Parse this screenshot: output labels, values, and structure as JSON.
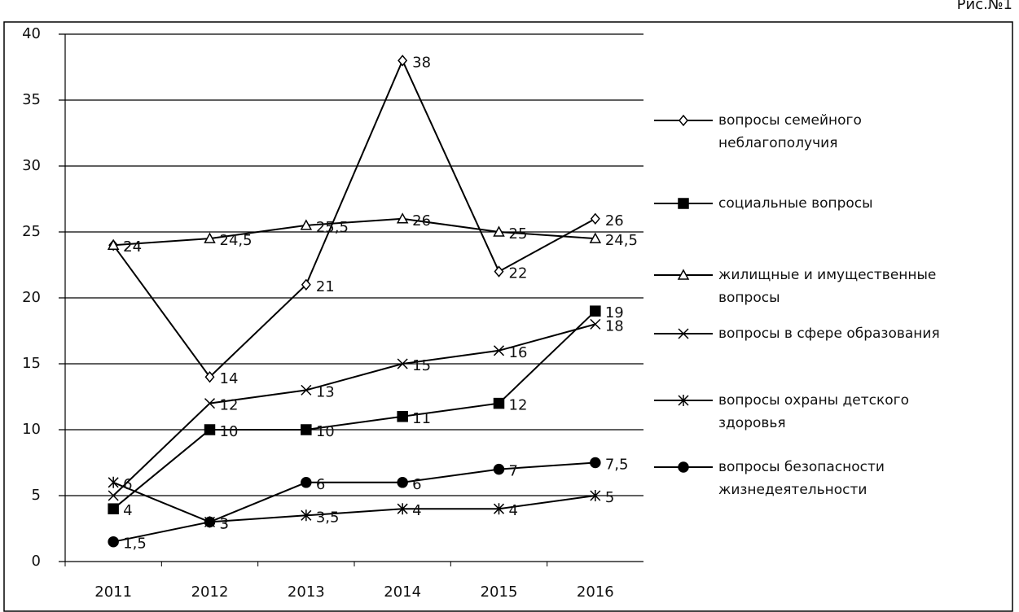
{
  "chart_data": {
    "type": "line",
    "annotation": "Рис.№1",
    "categories": [
      "2011",
      "2012",
      "2013",
      "2014",
      "2015",
      "2016"
    ],
    "ylim": [
      0,
      40
    ],
    "yticks": [
      0,
      5,
      10,
      15,
      20,
      25,
      30,
      35,
      40
    ],
    "grid": true,
    "legend": "right",
    "series": [
      {
        "name": "вопросы семейного неблагополучия",
        "color": "#000000",
        "marker": "diamond",
        "values": [
          24,
          14,
          21,
          38,
          22,
          26
        ]
      },
      {
        "name": "социальные вопросы",
        "color": "#000000",
        "marker": "square",
        "values": [
          4,
          10,
          10,
          11,
          12,
          19
        ]
      },
      {
        "name": "жилищные и имущественные вопросы",
        "color": "#000000",
        "marker": "triangle",
        "values": [
          24,
          24.5,
          25.5,
          26,
          25,
          24.5
        ],
        "value_labels": [
          "24",
          "24,5",
          "25,5",
          "26",
          "25",
          "24,5"
        ]
      },
      {
        "name": "вопросы в сфере образования",
        "color": "#000000",
        "marker": "x",
        "values": [
          5,
          12,
          13,
          15,
          16,
          18
        ],
        "value_labels": [
          null,
          "12",
          "13",
          "15",
          "16",
          "18"
        ]
      },
      {
        "name": "вопросы охраны детского здоровья",
        "color": "#000000",
        "marker": "star",
        "values": [
          6,
          3,
          3.5,
          4,
          4,
          5
        ],
        "value_labels": [
          "6",
          "3",
          "3,5",
          "4",
          "4",
          "5"
        ]
      },
      {
        "name": "вопросы безопасности жизнедеятельности",
        "color": "#000000",
        "marker": "circle",
        "values": [
          1.5,
          3,
          6,
          6,
          7,
          7.5
        ],
        "value_labels": [
          "1,5",
          "3",
          "6",
          "6",
          "7",
          "7,5"
        ]
      }
    ]
  }
}
